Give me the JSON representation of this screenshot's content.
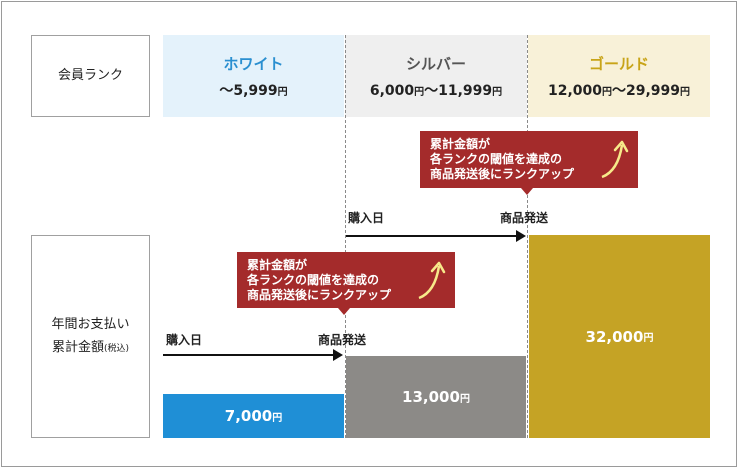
{
  "labels": {
    "member_rank": "会員ランク",
    "annual_line1": "年間お支払い",
    "annual_line2": "累計金額",
    "tax_included": "(税込)"
  },
  "ranks": [
    {
      "name": "ホワイト",
      "range_a": "～5,999",
      "range_b": "",
      "color": "#2a8fd0",
      "bg": "#e4f2fb"
    },
    {
      "name": "シルバー",
      "range_a": "6,000",
      "range_b": "～11,999",
      "color": "#555555",
      "bg": "#efefef"
    },
    {
      "name": "ゴールド",
      "range_a": "12,000",
      "range_b": "～29,999",
      "color": "#c8a418",
      "bg": "#f8f1d8"
    }
  ],
  "yen": "円",
  "amounts": [
    {
      "value": "7,000",
      "color": "#1f8fd6"
    },
    {
      "value": "13,000",
      "color": "#8c8a87"
    },
    {
      "value": "32,000",
      "color": "#c5a325"
    }
  ],
  "callout": {
    "line1": "累計金額が",
    "line2": "各ランクの閾値を達成の",
    "line3": "商品発送後にランクアップ"
  },
  "flow": {
    "purchase_date": "購入日",
    "shipping": "商品発送"
  }
}
